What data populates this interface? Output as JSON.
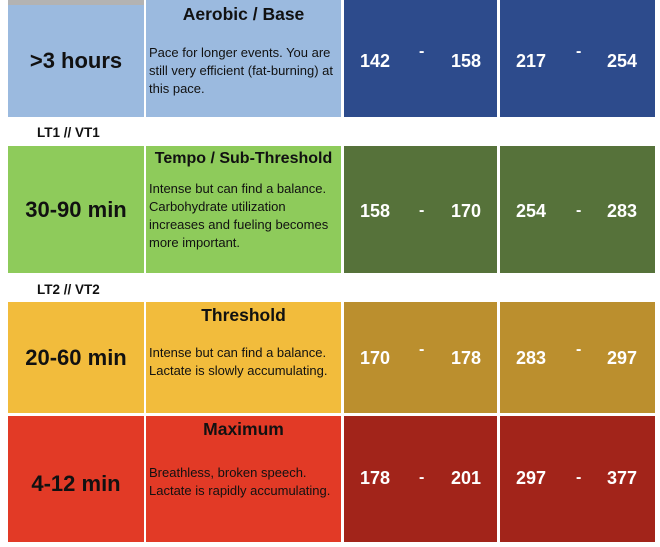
{
  "zones": [
    {
      "duration": ">3 hours",
      "title": "Aerobic / Base",
      "description": "Pace for longer events. You are still very efficient (fat-burning) at this pace.",
      "hr_low": "142",
      "hr_high": "158",
      "power_low": "217",
      "power_high": "254",
      "colors": {
        "duration": "#9bbadf",
        "description": "#9bbadf",
        "metric": "#2d4b8c"
      }
    },
    {
      "duration": "30-90 min",
      "title": "Tempo / Sub-Threshold",
      "description": "Intense but can find a balance. Carbohydrate utilization increases and fueling becomes more important.",
      "hr_low": "158",
      "hr_high": "170",
      "power_low": "254",
      "power_high": "283",
      "colors": {
        "duration": "#8ecb5b",
        "description": "#8ecb5b",
        "metric": "#56723a"
      }
    },
    {
      "duration": "20-60 min",
      "title": "Threshold",
      "description": "Intense but can find a balance. Lactate is slowly accumulating.",
      "hr_low": "170",
      "hr_high": "178",
      "power_low": "283",
      "power_high": "297",
      "colors": {
        "duration": "#f2bc3c",
        "description": "#f2bc3c",
        "metric": "#bb8f2e"
      }
    },
    {
      "duration": "4-12 min",
      "title": "Maximum",
      "description": "Breathless, broken speech. Lactate is rapidly accumulating.",
      "hr_low": "178",
      "hr_high": "201",
      "power_low": "297",
      "power_high": "377",
      "colors": {
        "duration": "#e23a26",
        "description": "#e23a26",
        "metric": "#a2241a"
      }
    }
  ],
  "separators": [
    "LT1 // VT1",
    "LT2 // VT2"
  ],
  "range_dash": "-"
}
